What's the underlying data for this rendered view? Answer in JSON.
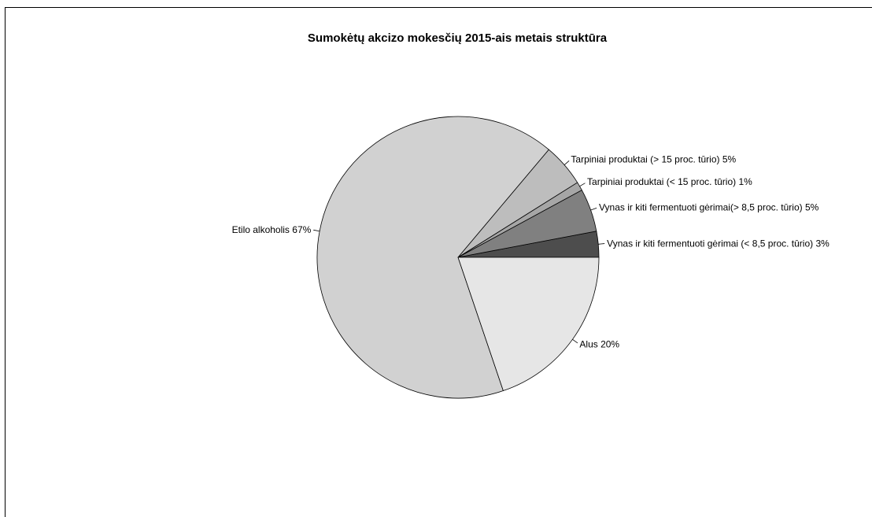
{
  "chart_data": {
    "type": "pie",
    "title": "Sumokėtų akcizo mokesčių 2015-ais metais struktūra",
    "start_angle_deg": 0,
    "direction": "counterclockwise",
    "slices": [
      {
        "label": "Vynas ir kiti fermentuoti gėrimai (< 8,5 proc. tūrio) 3%",
        "value": 3,
        "color": "#4d4d4d"
      },
      {
        "label": "Vynas ir kiti fermentuoti gėrimai(> 8,5 proc. tūrio) 5%",
        "value": 5,
        "color": "#808080"
      },
      {
        "label": "Tarpiniai produktai (< 15 proc. tūrio) 1%",
        "value": 1,
        "color": "#a6a6a6"
      },
      {
        "label": "Tarpiniai produktai (> 15 proc. tūrio) 5%",
        "value": 5,
        "color": "#bdbdbd"
      },
      {
        "label": "Etilo alkoholis 67%",
        "value": 67,
        "color": "#d1d1d1"
      },
      {
        "label": "Alus 20%",
        "value": 20,
        "color": "#e6e6e6"
      }
    ]
  }
}
